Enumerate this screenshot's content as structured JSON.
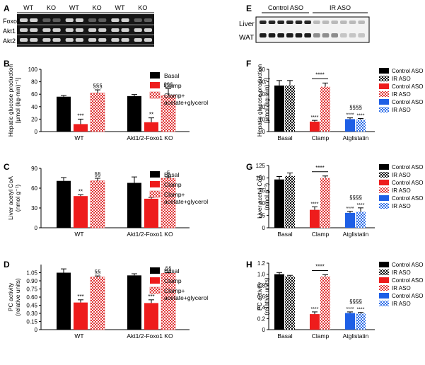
{
  "colors": {
    "black": "#000000",
    "red": "#ee1c1c",
    "blue": "#1e5fe6",
    "pattern_red": "#e03a3a",
    "pattern_black": "#000000",
    "pattern_blue": "#2e6ee8",
    "blot_bg": "#161616",
    "blot_band": "#e8e8e8"
  },
  "blots": [
    {
      "panel": "A",
      "col_labels": [
        "WT",
        "KO",
        "WT",
        "KO",
        "WT",
        "KO"
      ],
      "row_labels": [
        "Foxo1",
        "Akt1",
        "Akt2"
      ]
    },
    {
      "panel": "E",
      "col_labels": [
        "Control ASO",
        "IR ASO"
      ],
      "row_labels": [
        "Liver",
        "WAT"
      ]
    }
  ],
  "legends": {
    "left": [
      "Basal",
      "Clamp",
      "Clamp+\nacetate+glycerol"
    ],
    "right": [
      "Control ASO",
      "IR ASO",
      "Control ASO",
      "IR ASO",
      "Control ASO",
      "IR ASO"
    ]
  },
  "chart_data": [
    {
      "panel": "B",
      "type": "bar",
      "categories": [
        "WT",
        "Akt1/2-Foxo1 KO"
      ],
      "ylabel": "Hepatic glucose production\n[μmol (kg-min)⁻¹]",
      "ylim": [
        0,
        100
      ],
      "yticks": [
        0,
        20,
        40,
        60,
        80,
        100
      ],
      "series": [
        {
          "name": "Basal",
          "values": [
            56,
            57
          ],
          "err": [
            2,
            2.5
          ]
        },
        {
          "name": "Clamp",
          "values": [
            12,
            15
          ],
          "err": [
            8,
            7
          ]
        },
        {
          "name": "Clamp+\nacetate+glycerol",
          "values": [
            62,
            58
          ],
          "err": [
            5,
            11
          ]
        }
      ],
      "annotations": [
        [
          "***",
          "**"
        ],
        [
          "§§§",
          "§§§"
        ]
      ]
    },
    {
      "panel": "C",
      "type": "bar",
      "categories": [
        "WT",
        "Akt1/2-Foxo1 KO"
      ],
      "ylabel": "Liver acetyl CoA\n(nmol g⁻¹)",
      "ylim": [
        0,
        90
      ],
      "yticks": [
        0,
        30,
        60,
        90
      ],
      "series": [
        {
          "name": "Basal",
          "values": [
            71,
            68
          ],
          "err": [
            5,
            9
          ]
        },
        {
          "name": "Clamp",
          "values": [
            48,
            44
          ],
          "err": [
            2,
            2
          ]
        },
        {
          "name": "Clamp+\nacetate+glycerol",
          "values": [
            71,
            75
          ],
          "err": [
            4,
            2
          ]
        }
      ],
      "annotations": [
        [
          "**",
          "*"
        ],
        [
          "§§",
          "§"
        ]
      ]
    },
    {
      "panel": "D",
      "type": "bar",
      "categories": [
        "WT",
        "Akt1/2-Foxo1 KO"
      ],
      "ylabel": "PC activity\n(relative units)",
      "ylim": [
        0,
        1.2
      ],
      "yticks": [
        "0",
        "0.15",
        "0.30",
        "0.45",
        "0.60",
        "0.75",
        "0.90",
        "1.05"
      ],
      "ytick_values": [
        0,
        0.15,
        0.3,
        0.45,
        0.6,
        0.75,
        0.9,
        1.05
      ],
      "series": [
        {
          "name": "Basal",
          "values": [
            1.05,
            1.0
          ],
          "err": [
            0.07,
            0.03
          ]
        },
        {
          "name": "Clamp",
          "values": [
            0.5,
            0.49
          ],
          "err": [
            0.05,
            0.06
          ]
        },
        {
          "name": "Clamp+\nacetate+glycerol",
          "values": [
            0.97,
            1.04
          ],
          "err": [
            0.02,
            0.01
          ]
        }
      ],
      "annotations": [
        [
          "***",
          "***"
        ],
        [
          "§§",
          "§§"
        ]
      ]
    },
    {
      "panel": "F",
      "type": "bar",
      "categories": [
        "Basal",
        "Clamp",
        "Atglistatin"
      ],
      "ylabel": "Hepatic glucose production\n[μmol (kg-min)⁻¹]",
      "ylim": [
        0,
        50
      ],
      "yticks": [
        0,
        10,
        20,
        30,
        40,
        50
      ],
      "series": [
        {
          "name": "Control ASO",
          "values": [
            37,
            8,
            10
          ],
          "err": [
            4,
            1,
            1
          ]
        },
        {
          "name": "IR ASO",
          "values": [
            37,
            36,
            9.5
          ],
          "err": [
            4,
            3,
            1
          ]
        }
      ],
      "annotations": {
        "above_first": [
          null,
          "****",
          "****"
        ],
        "above_second": [
          null,
          null,
          "****"
        ],
        "bracket": "****",
        "above_group": "§§§§"
      }
    },
    {
      "panel": "G",
      "type": "bar",
      "categories": [
        "Basal",
        "Clamp",
        "Atglistatin"
      ],
      "ylabel": "Liver acetyl CoA\n(nmol g⁻¹)",
      "ylim": [
        0,
        125
      ],
      "yticks": [
        0,
        25,
        50,
        75,
        100,
        125
      ],
      "series": [
        {
          "name": "Control ASO",
          "values": [
            97,
            36,
            30
          ],
          "err": [
            6,
            6,
            3
          ]
        },
        {
          "name": "IR ASO",
          "values": [
            104,
            100,
            32
          ],
          "err": [
            6,
            4,
            8
          ]
        }
      ],
      "annotations": {
        "above_first": [
          null,
          "****",
          "****"
        ],
        "above_second": [
          null,
          null,
          "****"
        ],
        "bracket": "****",
        "above_group": "§§§§"
      }
    },
    {
      "panel": "H",
      "type": "bar",
      "categories": [
        "Basal",
        "Clamp",
        "Atglistatin"
      ],
      "ylabel": "PC activity\n(relative units)",
      "ylim": [
        0,
        1.2
      ],
      "yticks": [
        "0",
        "0.2",
        "0.4",
        "0.6",
        "0.8",
        "1.0",
        "1.2"
      ],
      "ytick_values": [
        0,
        0.2,
        0.4,
        0.6,
        0.8,
        1.0,
        1.2
      ],
      "series": [
        {
          "name": "Control ASO",
          "values": [
            1.0,
            0.28,
            0.3
          ],
          "err": [
            0.03,
            0.04,
            0.02
          ]
        },
        {
          "name": "IR ASO",
          "values": [
            0.96,
            0.96,
            0.29
          ],
          "err": [
            0.02,
            0.03,
            0.02
          ]
        }
      ],
      "annotations": {
        "above_first": [
          null,
          "****",
          "****"
        ],
        "above_second": [
          null,
          null,
          "****"
        ],
        "bracket": "****",
        "above_group": "§§§§"
      }
    }
  ],
  "panel_letters": [
    "A",
    "B",
    "C",
    "D",
    "E",
    "F",
    "G",
    "H"
  ]
}
